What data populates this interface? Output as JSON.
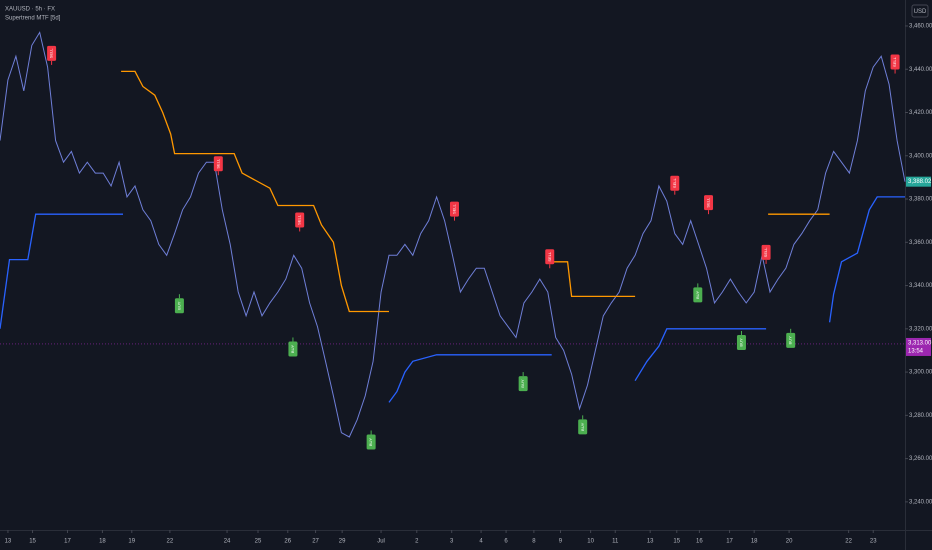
{
  "chart_data": {
    "type": "line",
    "title": "XAUUSD · 5h · FX",
    "subtitle": "Supertrend MTF [5d]",
    "currency": "USD",
    "xlim": [
      0,
      114
    ],
    "ylim": [
      3227,
      3472
    ],
    "grid": false,
    "xticks": [
      {
        "value": 1,
        "label": "13"
      },
      {
        "value": 4.1,
        "label": "15"
      },
      {
        "value": 8.5,
        "label": "17"
      },
      {
        "value": 12.9,
        "label": "18"
      },
      {
        "value": 16.6,
        "label": "19"
      },
      {
        "value": 21.4,
        "label": "22"
      },
      {
        "value": 28.6,
        "label": "24"
      },
      {
        "value": 32.5,
        "label": "25"
      },
      {
        "value": 36.25,
        "label": "26"
      },
      {
        "value": 39.75,
        "label": "27"
      },
      {
        "value": 43.1,
        "label": "29"
      },
      {
        "value": 48,
        "label": "Jul"
      },
      {
        "value": 52.5,
        "label": "2"
      },
      {
        "value": 56.9,
        "label": "3"
      },
      {
        "value": 60.6,
        "label": "4"
      },
      {
        "value": 63.75,
        "label": "6"
      },
      {
        "value": 67.25,
        "label": "8"
      },
      {
        "value": 70.6,
        "label": "9"
      },
      {
        "value": 74.4,
        "label": "10"
      },
      {
        "value": 77.5,
        "label": "11"
      },
      {
        "value": 81.9,
        "label": "13"
      },
      {
        "value": 85.25,
        "label": "15"
      },
      {
        "value": 88.1,
        "label": "16"
      },
      {
        "value": 91.9,
        "label": "17"
      },
      {
        "value": 95,
        "label": "18"
      },
      {
        "value": 99.4,
        "label": "20"
      },
      {
        "value": 106.9,
        "label": "22"
      },
      {
        "value": 110,
        "label": "23"
      }
    ],
    "yticks": [
      {
        "value": 3240,
        "label": "3,240.00"
      },
      {
        "value": 3260,
        "label": "3,260.00"
      },
      {
        "value": 3280,
        "label": "3,280.00"
      },
      {
        "value": 3300,
        "label": "3,300.00"
      },
      {
        "value": 3320,
        "label": "3,320.00"
      },
      {
        "value": 3340,
        "label": "3,340.00"
      },
      {
        "value": 3360,
        "label": "3,360.00"
      },
      {
        "value": 3380,
        "label": "3,380.00"
      },
      {
        "value": 3400,
        "label": "3,400.00"
      },
      {
        "value": 3420,
        "label": "3,420.00"
      },
      {
        "value": 3440,
        "label": "3,440.00"
      },
      {
        "value": 3460,
        "label": "3,460.00"
      }
    ],
    "series": [
      {
        "color": "#6f7fd8",
        "values": [
          3407,
          3435,
          3446,
          3430,
          3451,
          3457,
          3441,
          3407,
          3397,
          3402,
          3392,
          3397,
          3392,
          3392,
          3386,
          3397,
          3381,
          3386,
          3375,
          3370,
          3359,
          3354,
          3364,
          3375,
          3381,
          3392,
          3397,
          3397,
          3375,
          3359,
          3337,
          3326,
          3337,
          3326,
          3332,
          3337,
          3343,
          3354,
          3348,
          3332,
          3321,
          3305,
          3289,
          3272,
          3270,
          3278,
          3289,
          3305,
          3337,
          3354,
          3354,
          3359,
          3354,
          3364,
          3370,
          3381,
          3370,
          3354,
          3337,
          3343,
          3348,
          3348,
          3337,
          3326,
          3321,
          3316,
          3332,
          3337,
          3343,
          3337,
          3316,
          3310,
          3299,
          3283,
          3294,
          3310,
          3326,
          3332,
          3337,
          3348,
          3354,
          3364,
          3370,
          3386,
          3379,
          3364,
          3359,
          3370,
          3359,
          3348,
          3332,
          3337,
          3343,
          3337,
          3332,
          3337,
          3354,
          3337,
          3343,
          3348,
          3359,
          3364,
          3370,
          3375,
          3392,
          3402,
          3397,
          3392,
          3407,
          3430,
          3441,
          3446,
          3433,
          3407,
          3388.02
        ]
      },
      {
        "color": "#ff9800",
        "x": [
          15.25,
          17,
          18,
          19.5,
          20.5,
          21.5,
          22,
          29.5,
          30.5,
          34,
          35,
          39.5,
          40.5,
          42,
          43,
          44,
          49,
          null,
          69.5,
          71.5,
          72,
          80,
          null,
          96.75,
          104.5
        ],
        "values": [
          3439,
          3439,
          3432,
          3428,
          3420,
          3410,
          3401,
          3401,
          3392,
          3385,
          3377,
          3377,
          3368,
          3360,
          3340,
          3328,
          3328,
          null,
          3351,
          3351,
          3335,
          3335,
          null,
          3373,
          3373
        ]
      },
      {
        "color": "#2962ff",
        "x": [
          0,
          1.2,
          3.5,
          4.5,
          15.5,
          null,
          49,
          50,
          51,
          52,
          55,
          69.5,
          null,
          80,
          81.5,
          83,
          84,
          96.5,
          null,
          104.5,
          105,
          106,
          108,
          109.5,
          110.5,
          114
        ],
        "values": [
          3320,
          3352,
          3352,
          3373,
          3373,
          null,
          3286,
          3291,
          3300,
          3305,
          3308,
          3308,
          null,
          3296,
          3305,
          3312,
          3320,
          3320,
          null,
          3323,
          3336,
          3351,
          3355,
          3375,
          3381,
          3381
        ]
      }
    ],
    "signals": [
      {
        "label": "SELL",
        "color": "#f23645",
        "x": [
          6.5,
          27.5,
          37.75,
          57.25,
          69.25,
          85,
          89.25,
          96.5,
          112.75
        ],
        "values": [
          3442,
          3391,
          3365,
          3370,
          3348,
          3382,
          3373,
          3350,
          3438
        ]
      },
      {
        "label": "BUY",
        "color": "#4caf50",
        "x": [
          22.6,
          36.9,
          46.75,
          65.9,
          73.4,
          87.9,
          93.4,
          99.6
        ],
        "values": [
          3336,
          3316,
          3273,
          3300,
          3280,
          3341,
          3319,
          3320
        ]
      }
    ],
    "last_price": {
      "value": 3388.02,
      "label": "3,388.02",
      "color": "#26a69a"
    },
    "marker_line": {
      "value": 3313,
      "label": "3,313.00",
      "time": "13:54",
      "color": "#9c27b0"
    }
  }
}
